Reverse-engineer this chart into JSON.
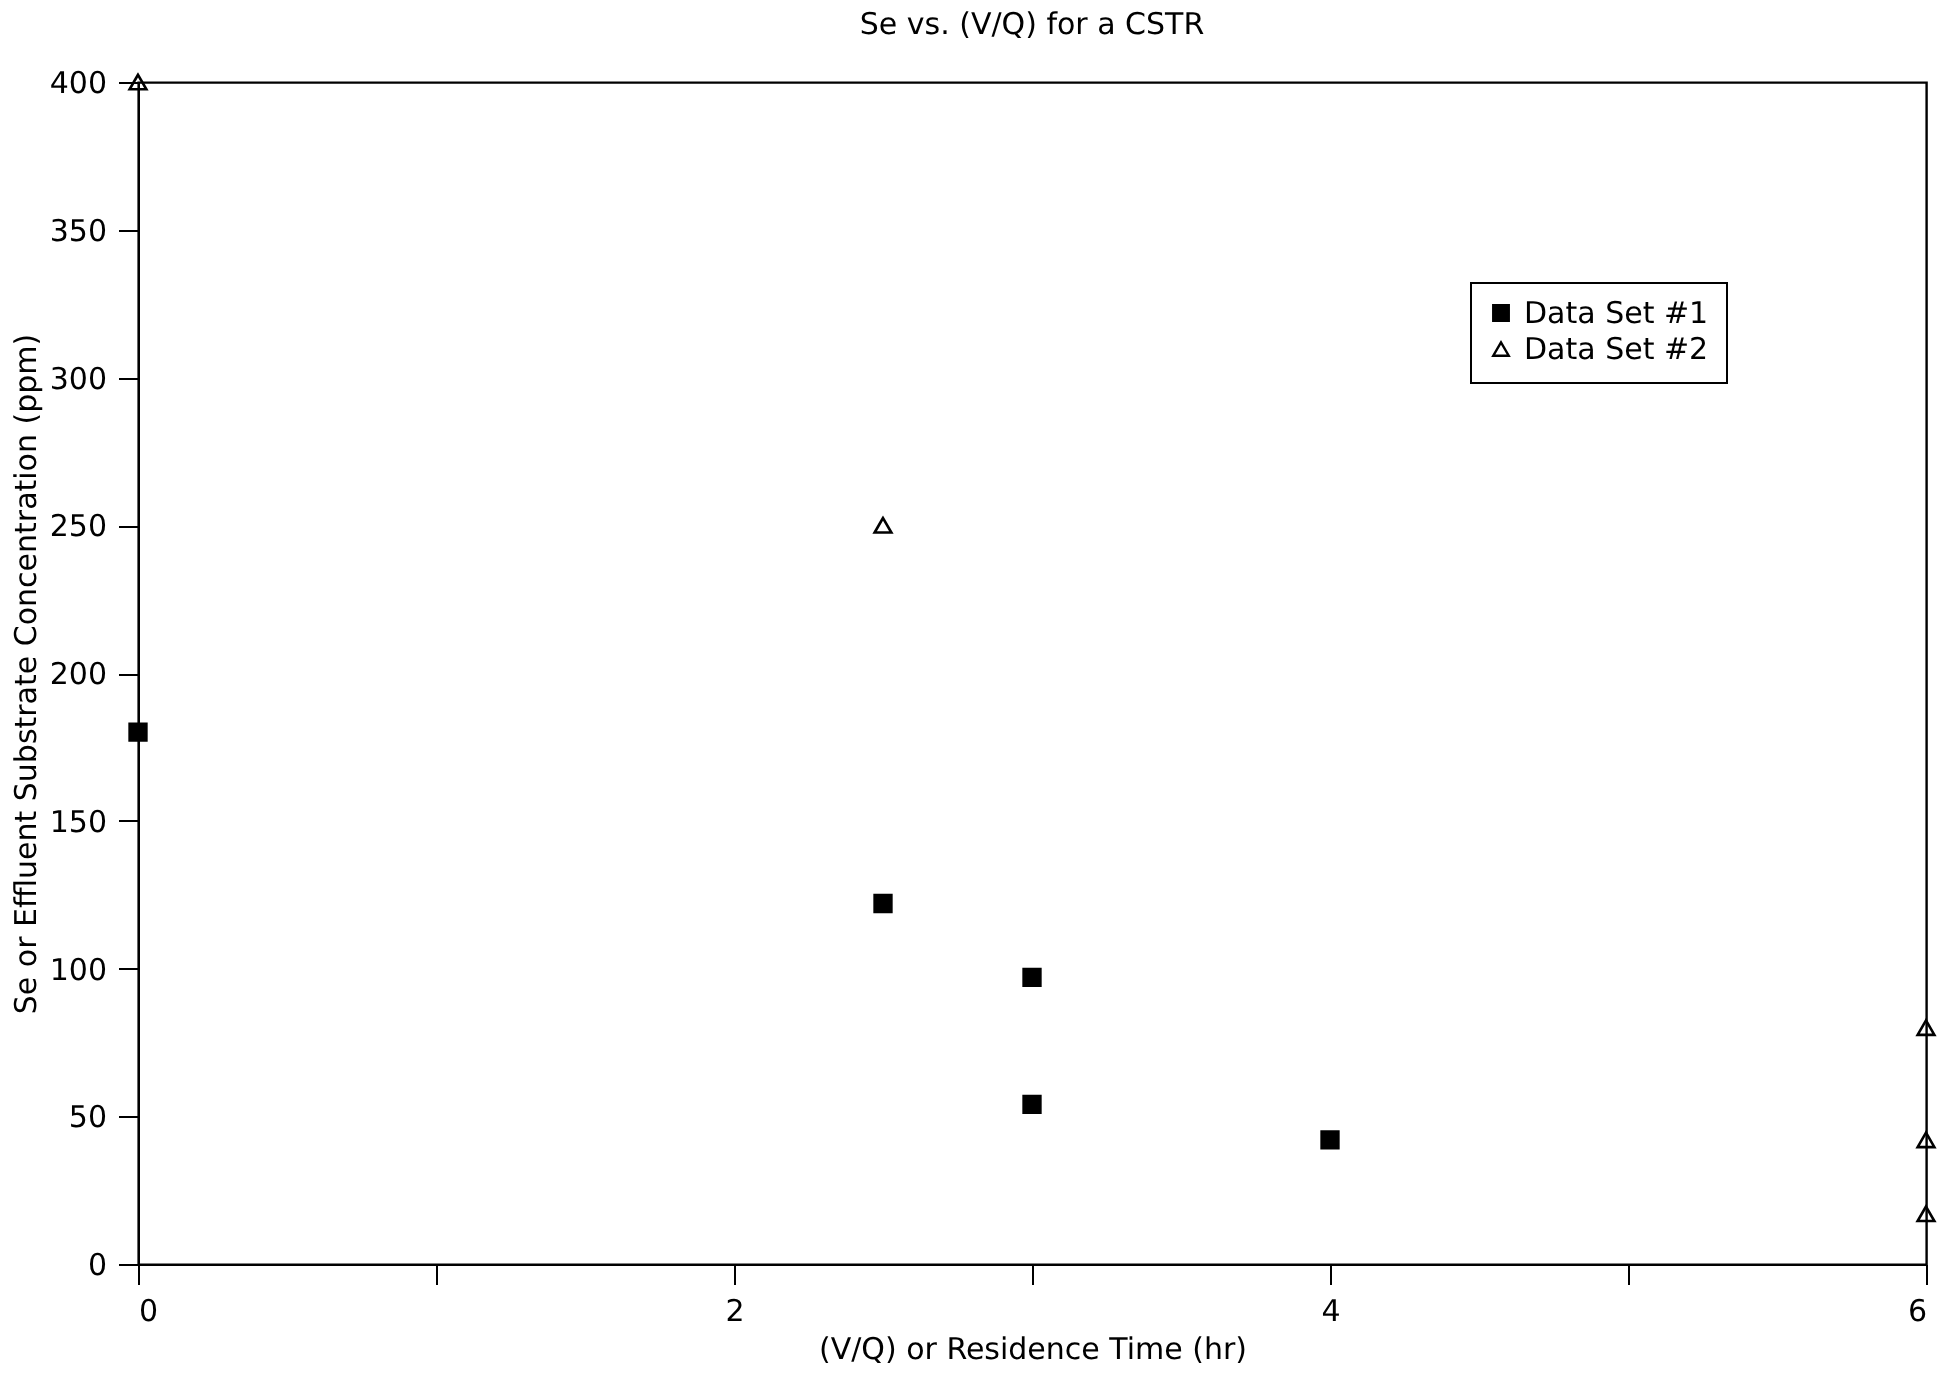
{
  "chart_data": {
    "type": "scatter",
    "title": "Se vs. (V/Q) for a CSTR",
    "xlabel": "(V/Q) or Residence Time (hr)",
    "ylabel": "Se or Effluent Substrate Concentration (ppm)",
    "series": [
      {
        "name": "Data Set #1",
        "color": "#000000",
        "marker": "square",
        "x": [
          0,
          2.5,
          3,
          3,
          4
        ],
        "values": [
          180,
          122,
          97,
          54,
          42
        ]
      },
      {
        "name": "Data Set #2",
        "color": "#000000",
        "marker": "triangle",
        "x": [
          0,
          2.5,
          6,
          6,
          6
        ],
        "values": [
          400,
          250,
          80,
          42,
          17
        ]
      }
    ],
    "xlim": [
      0,
      6
    ],
    "xticks": [
      0,
      {
        "value": 1,
        "label": null
      },
      2,
      {
        "value": 3,
        "label": null
      },
      4,
      {
        "value": 5,
        "label": null
      },
      6
    ],
    "ylim": [
      0,
      400
    ],
    "yticks": [
      0,
      50,
      100,
      150,
      200,
      250,
      300,
      350,
      400
    ],
    "grid": false,
    "legend": "top right"
  }
}
